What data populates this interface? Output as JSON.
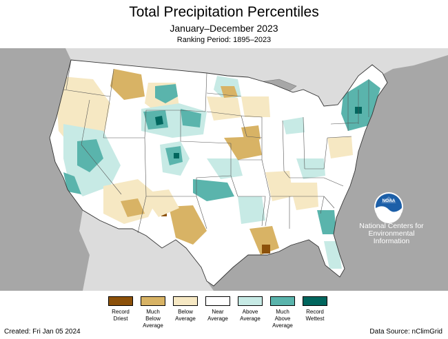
{
  "header": {
    "title": "Total Precipitation Percentiles",
    "subtitle": "January–December 2023",
    "ranking_period": "Ranking Period: 1895–2023"
  },
  "branding": {
    "logo_text": "NOAA",
    "org_lines": [
      "National Centers for",
      "Environmental",
      "Information"
    ]
  },
  "legend": {
    "items": [
      {
        "label_lines": [
          "Record",
          "Driest"
        ],
        "color": "#8c510a"
      },
      {
        "label_lines": [
          "Much",
          "Below",
          "Average"
        ],
        "color": "#d8b365"
      },
      {
        "label_lines": [
          "Below",
          "Average"
        ],
        "color": "#f6e8c3"
      },
      {
        "label_lines": [
          "Near",
          "Average"
        ],
        "color": "#ffffff"
      },
      {
        "label_lines": [
          "Above",
          "Average"
        ],
        "color": "#c7eae5"
      },
      {
        "label_lines": [
          "Much",
          "Above",
          "Average"
        ],
        "color": "#5ab4ac"
      },
      {
        "label_lines": [
          "Record",
          "Wettest"
        ],
        "color": "#01665e"
      }
    ]
  },
  "footer": {
    "created": "Created: Fri Jan 05 2024",
    "source": "Data Source: nClimGrid"
  },
  "colors": {
    "ocean": "#a7a7a7",
    "land_outside": "#dcdcdc",
    "lakes": "#a7a7a7",
    "state_border": "#555555"
  }
}
